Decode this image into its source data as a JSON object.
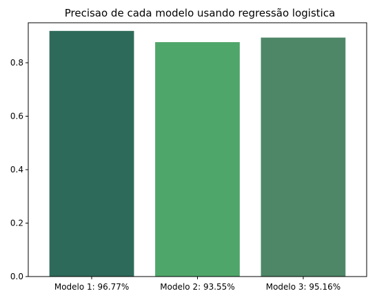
{
  "chart_data": {
    "type": "bar",
    "title": "Precisao de cada modelo usando regressão logistica",
    "xlabel": "",
    "ylabel": "",
    "categories": [
      "Modelo 1: 96.77%",
      "Modelo 2: 93.55%",
      "Modelo 3: 95.16%"
    ],
    "values": [
      0.919,
      0.877,
      0.894
    ],
    "colors": [
      "#2e6a5a",
      "#4fa66a",
      "#4e8767"
    ],
    "ylim": [
      0,
      0.9495
    ],
    "yticks": [
      0.0,
      0.2,
      0.4,
      0.6,
      0.8
    ],
    "ytick_labels": [
      "0.0",
      "0.2",
      "0.4",
      "0.6",
      "0.8"
    ],
    "grid": false,
    "legend": "none"
  }
}
